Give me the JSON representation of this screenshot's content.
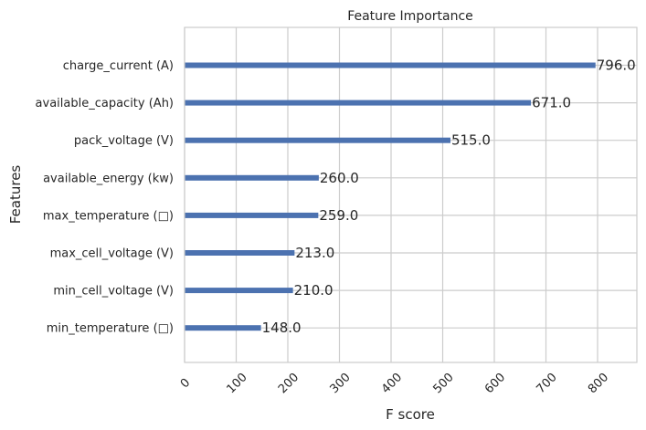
{
  "chart_data": {
    "type": "bar",
    "orientation": "horizontal",
    "title": "Feature Importance",
    "xlabel": "F score",
    "ylabel": "Features",
    "categories": [
      "charge_current (A)",
      "available_capacity (Ah)",
      "pack_voltage (V)",
      "available_energy (kw)",
      "max_temperature (□)",
      "max_cell_voltage (V)",
      "min_cell_voltage (V)",
      "min_temperature (□)"
    ],
    "values": [
      796.0,
      671.0,
      515.0,
      260.0,
      259.0,
      213.0,
      210.0,
      148.0
    ],
    "data_labels": [
      "796.0",
      "671.0",
      "515.0",
      "260.0",
      "259.0",
      "213.0",
      "210.0",
      "148.0"
    ],
    "xticks": [
      "0",
      "100",
      "200",
      "300",
      "400",
      "500",
      "600",
      "700",
      "800"
    ],
    "xlim": [
      0,
      875
    ],
    "grid": true,
    "bar_color": "#4c72b0",
    "grid_color": "#cccccc"
  }
}
